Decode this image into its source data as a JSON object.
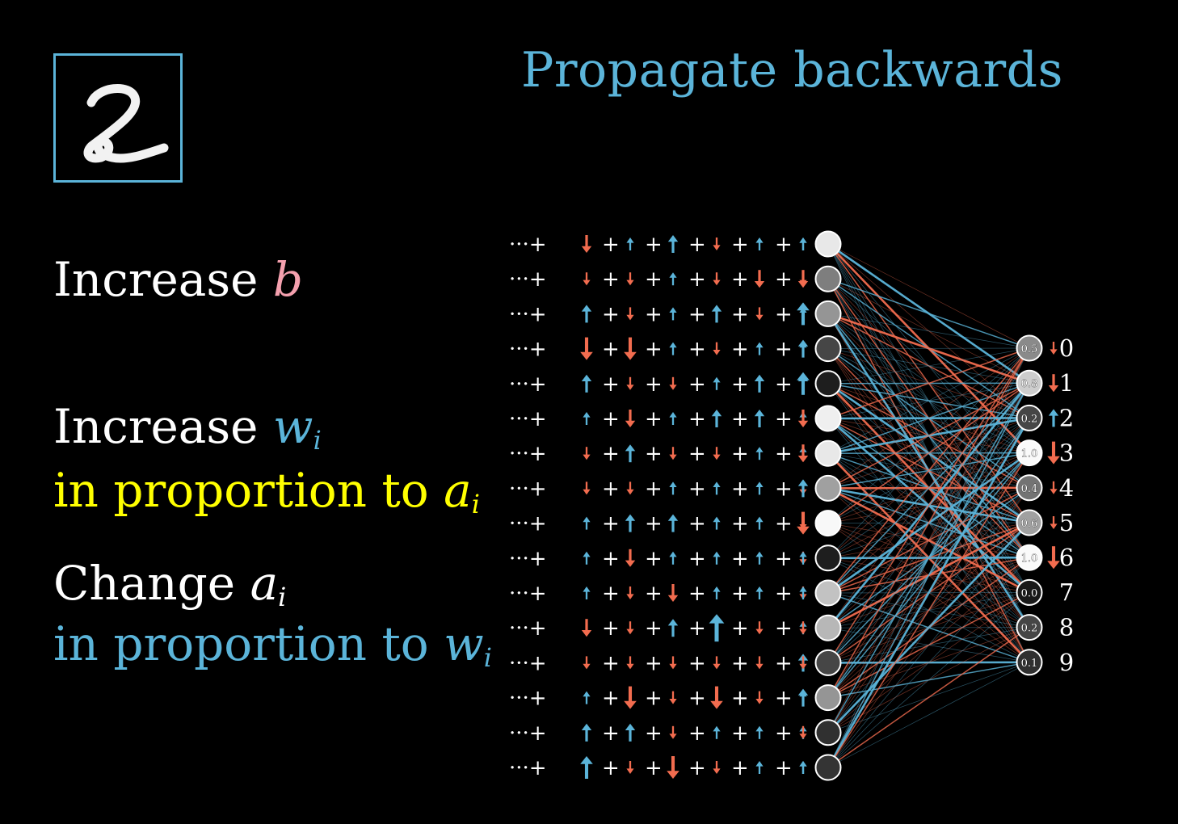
{
  "title": "Propagate backwards",
  "digit_image": {
    "label": "2"
  },
  "text": {
    "increase_b": {
      "word": "Increase",
      "var": "b"
    },
    "increase_w": {
      "word": "Increase",
      "var": "w",
      "sub": "i"
    },
    "proportion_a": {
      "prefix": "in proportion to",
      "var": "a",
      "sub": "i"
    },
    "change_a": {
      "word": "Change",
      "var": "a",
      "sub": "i"
    },
    "proportion_w": {
      "prefix": "in proportion to",
      "var": "w",
      "sub": "i"
    }
  },
  "colors": {
    "accent_blue": "#5BB4D9",
    "accent_red": "#F26C4F",
    "yellow": "#FFFF00",
    "pink": "#F4A0AE"
  },
  "hidden_layer": {
    "row_prefix": "···+",
    "activations": [
      0.92,
      0.45,
      0.55,
      0.2,
      0.02,
      0.95,
      0.92,
      0.6,
      0.99,
      0.02,
      0.75,
      0.7,
      0.2,
      0.55,
      0.1,
      0.12
    ],
    "nudge_rows": [
      [
        -2,
        1,
        2,
        -1,
        1,
        1,
        1
      ],
      [
        -1,
        -1,
        1,
        -1,
        -2,
        -1,
        -2
      ],
      [
        2,
        -1,
        1,
        2,
        -1,
        1,
        3
      ],
      [
        -3,
        -3,
        1,
        -1,
        1,
        1,
        2
      ],
      [
        2,
        -1,
        -1,
        1,
        2,
        2,
        3
      ],
      [
        1,
        -2,
        1,
        2,
        2,
        1,
        -2
      ],
      [
        -1,
        2,
        -1,
        -1,
        1,
        1,
        -2
      ],
      [
        -1,
        -1,
        1,
        1,
        1,
        -1,
        2
      ],
      [
        1,
        2,
        2,
        1,
        1,
        -1,
        -3
      ],
      [
        1,
        -2,
        1,
        1,
        1,
        -1,
        1
      ],
      [
        1,
        -1,
        -2,
        1,
        1,
        -1,
        1
      ],
      [
        -2,
        -1,
        2,
        4,
        -1,
        1,
        -1
      ],
      [
        -1,
        -1,
        -1,
        -1,
        -1,
        2,
        -1
      ],
      [
        1,
        -3,
        -1,
        -3,
        -1,
        1,
        2
      ],
      [
        2,
        2,
        -1,
        1,
        1,
        1,
        -1
      ],
      [
        3,
        -1,
        -3,
        -1,
        1,
        1,
        1
      ]
    ]
  },
  "output_layer": [
    {
      "label": "0",
      "value": "0.5",
      "act": 0.5,
      "nudge": -1
    },
    {
      "label": "1",
      "value": "0.8",
      "act": 0.8,
      "nudge": -2
    },
    {
      "label": "2",
      "value": "0.2",
      "act": 0.2,
      "nudge": 2
    },
    {
      "label": "3",
      "value": "1.0",
      "act": 1.0,
      "nudge": -3
    },
    {
      "label": "4",
      "value": "0.4",
      "act": 0.4,
      "nudge": -1
    },
    {
      "label": "5",
      "value": "0.6",
      "act": 0.6,
      "nudge": -1
    },
    {
      "label": "6",
      "value": "1.0",
      "act": 1.0,
      "nudge": -3
    },
    {
      "label": "7",
      "value": "0.0",
      "act": 0.0,
      "nudge": 0
    },
    {
      "label": "8",
      "value": "0.2",
      "act": 0.2,
      "nudge": 0
    },
    {
      "label": "9",
      "value": "0.1",
      "act": 0.1,
      "nudge": 0
    }
  ]
}
